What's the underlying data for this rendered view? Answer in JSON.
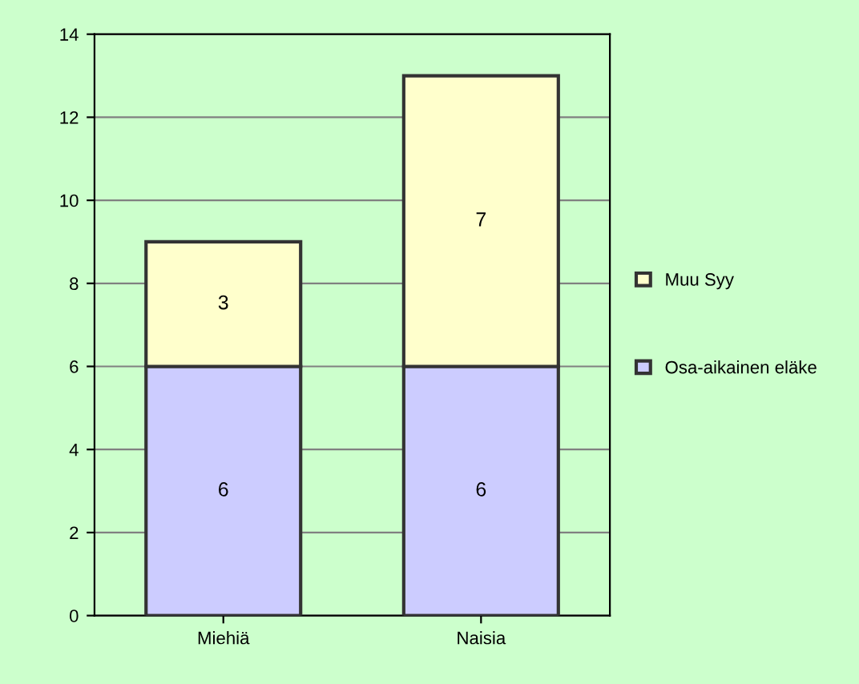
{
  "chart_data": {
    "type": "bar",
    "stacked": true,
    "categories": [
      "Miehiä",
      "Naisia"
    ],
    "series": [
      {
        "name": "Osa-aikainen eläke",
        "color": "#ccccff",
        "values": [
          6,
          6
        ]
      },
      {
        "name": "Muu Syy",
        "color": "#ffffcc",
        "values": [
          3,
          7
        ]
      }
    ],
    "ylim": [
      0,
      14
    ],
    "yticks": [
      0,
      2,
      4,
      6,
      8,
      10,
      12,
      14
    ],
    "grid": "y",
    "legend": "right",
    "data_labels": true
  }
}
